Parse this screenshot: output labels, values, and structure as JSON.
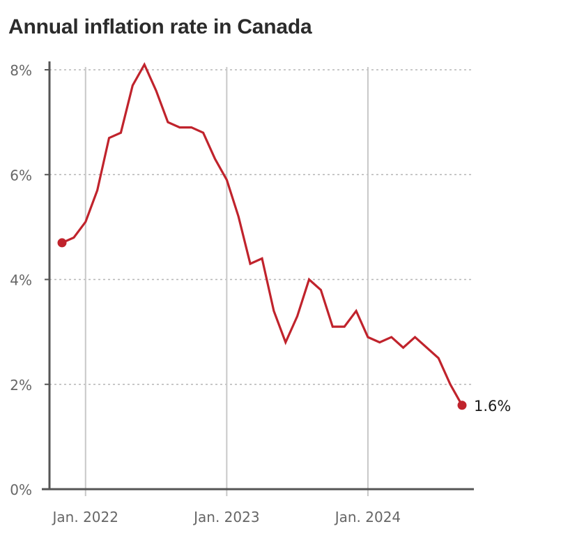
{
  "chart_data": {
    "type": "line",
    "title": "Annual inflation rate in Canada",
    "xlabel": "",
    "ylabel": "",
    "x_range": [
      "2021-11",
      "2024-09"
    ],
    "ylim": [
      0,
      8
    ],
    "y_ticks": [
      0,
      2,
      4,
      6,
      8
    ],
    "y_tick_labels": [
      "0%",
      "2%",
      "4%",
      "6%",
      "8%"
    ],
    "x_ticks": [
      "2022-01",
      "2023-01",
      "2024-01"
    ],
    "x_tick_labels": [
      "Jan. 2022",
      "Jan. 2023",
      "Jan. 2024"
    ],
    "grid": {
      "horizontal": "dotted",
      "vertical": "solid"
    },
    "legend": "none",
    "colors": {
      "line": "#c0232c",
      "axis": "#555555",
      "grid_h": "#b5b5b5",
      "grid_v": "#c8c8c8"
    },
    "end_label": "1.6%",
    "series": [
      {
        "x": [
          "2021-11",
          "2021-12",
          "2022-01",
          "2022-02",
          "2022-03",
          "2022-04",
          "2022-05",
          "2022-06",
          "2022-07",
          "2022-08",
          "2022-09",
          "2022-10",
          "2022-11",
          "2022-12",
          "2023-01",
          "2023-02",
          "2023-03",
          "2023-04",
          "2023-05",
          "2023-06",
          "2023-07",
          "2023-08",
          "2023-09",
          "2023-10",
          "2023-11",
          "2023-12",
          "2024-01",
          "2024-02",
          "2024-03",
          "2024-04",
          "2024-05",
          "2024-06",
          "2024-07",
          "2024-08",
          "2024-09"
        ],
        "values": [
          4.7,
          4.8,
          5.1,
          5.7,
          6.7,
          6.8,
          7.7,
          8.1,
          7.6,
          7.0,
          6.9,
          6.9,
          6.8,
          6.3,
          5.9,
          5.2,
          4.3,
          4.4,
          3.4,
          2.8,
          3.3,
          4.0,
          3.8,
          3.1,
          3.1,
          3.4,
          2.9,
          2.8,
          2.9,
          2.7,
          2.9,
          2.7,
          2.5,
          2.0,
          1.6
        ]
      }
    ]
  }
}
